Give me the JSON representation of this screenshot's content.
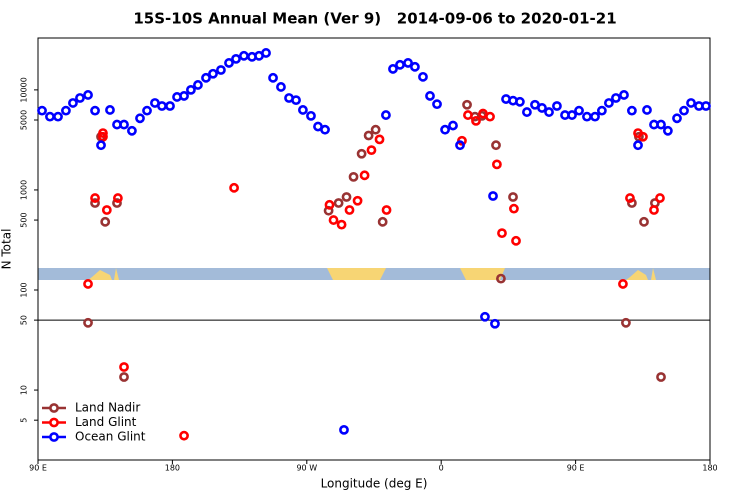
{
  "chart_data": {
    "type": "scatter",
    "title": "15S-10S Annual Mean (Ver 9)   2014-09-06 to 2020-01-21",
    "x_label": "Longitude (deg E)",
    "y_label": "N Total",
    "log_y": true,
    "legend": "bottom-left",
    "xlim": [
      90,
      540
    ],
    "xticks": [
      {
        "value": 90,
        "label": "90 E"
      },
      {
        "value": 180,
        "label": "180"
      },
      {
        "value": 270,
        "label": "90 W"
      },
      {
        "value": 360,
        "label": "0"
      },
      {
        "value": 450,
        "label": "90 E"
      },
      {
        "value": 540,
        "label": "180"
      }
    ],
    "ylim": [
      2,
      33000
    ],
    "yticks": [
      5,
      10,
      50,
      100,
      500,
      1000,
      5000,
      10000
    ],
    "hline": 50,
    "series": [
      {
        "name": "Land Nadir",
        "color": "#993333",
        "x": [
          123.5,
          128.2,
          132.2,
          135.0,
          142.9,
          147.6,
          284.6,
          291.3,
          296.6,
          301.3,
          306.7,
          311.4,
          316.1,
          320.8,
          377.3,
          382.6,
          387.3,
          396.7,
          400.0,
          408.1,
          483.7,
          487.7,
          492.4,
          495.8,
          503.1,
          507.2
        ],
        "values": [
          47,
          740,
          3400,
          480,
          740,
          13.5,
          620,
          740,
          850,
          1350,
          2300,
          3500,
          4000,
          480,
          7100,
          5400,
          5500,
          2800,
          130,
          850,
          47,
          740,
          3400,
          480,
          740,
          13.5
        ]
      },
      {
        "name": "Land Glint",
        "color": "#ff0000",
        "x": [
          123.5,
          128.2,
          133.5,
          133.5,
          136.1,
          143.5,
          147.6,
          187.8,
          221.3,
          285.2,
          287.9,
          293.3,
          298.6,
          304.0,
          308.7,
          313.3,
          318.7,
          323.4,
          373.9,
          377.9,
          383.3,
          388.0,
          392.7,
          397.3,
          400.7,
          410.1,
          408.7,
          481.7,
          486.4,
          491.8,
          495.1,
          502.5,
          506.5
        ],
        "values": [
          115,
          830,
          3700,
          3400,
          630,
          830,
          17,
          3.5,
          1050,
          710,
          500,
          450,
          630,
          780,
          1400,
          2500,
          3200,
          630,
          3100,
          5600,
          4900,
          5800,
          5400,
          1800,
          370,
          310,
          650,
          115,
          830,
          3700,
          3400,
          630,
          830
        ]
      },
      {
        "name": "Ocean Glint",
        "color": "#0000ff",
        "x": [
          92.7,
          98.0,
          103.4,
          108.7,
          113.4,
          118.1,
          123.5,
          128.2,
          132.2,
          138.2,
          142.9,
          147.6,
          152.9,
          158.3,
          163.0,
          168.3,
          173.0,
          178.4,
          183.1,
          187.8,
          192.4,
          197.1,
          202.5,
          207.2,
          212.5,
          217.9,
          222.6,
          227.9,
          233.3,
          238.0,
          242.7,
          247.4,
          252.7,
          258.1,
          262.8,
          267.4,
          272.8,
          277.5,
          282.2,
          294.9,
          323.0,
          327.7,
          332.4,
          337.8,
          342.4,
          347.8,
          352.5,
          357.2,
          362.6,
          367.9,
          372.6,
          389.3,
          394.7,
          396.0,
          403.4,
          408.1,
          412.7,
          417.4,
          422.8,
          427.5,
          432.2,
          437.5,
          442.9,
          447.6,
          452.3,
          457.6,
          463.0,
          467.6,
          472.3,
          477.0,
          482.4,
          487.7,
          491.8,
          497.8,
          502.5,
          507.2,
          511.8,
          517.9,
          522.6,
          527.3,
          532.6,
          537.3
        ],
        "values": [
          6200,
          5400,
          5400,
          6200,
          7400,
          8300,
          8900,
          6200,
          2800,
          6300,
          4500,
          4500,
          3900,
          5200,
          6200,
          7400,
          6900,
          6900,
          8500,
          8700,
          10000,
          11200,
          13200,
          14500,
          15800,
          18600,
          20400,
          21900,
          21400,
          21900,
          23400,
          13200,
          10700,
          8300,
          7900,
          6300,
          5500,
          4300,
          4000,
          4,
          5600,
          16200,
          17800,
          18600,
          17000,
          13500,
          8700,
          7200,
          4000,
          4400,
          2800,
          54,
          870,
          46,
          8100,
          7800,
          7600,
          6000,
          7100,
          6600,
          6000,
          6900,
          5600,
          5600,
          6200,
          5400,
          5400,
          6200,
          7400,
          8300,
          8900,
          6200,
          2800,
          6300,
          4500,
          4500,
          3900,
          5200,
          6200,
          7400,
          6900,
          6900
        ]
      }
    ]
  }
}
